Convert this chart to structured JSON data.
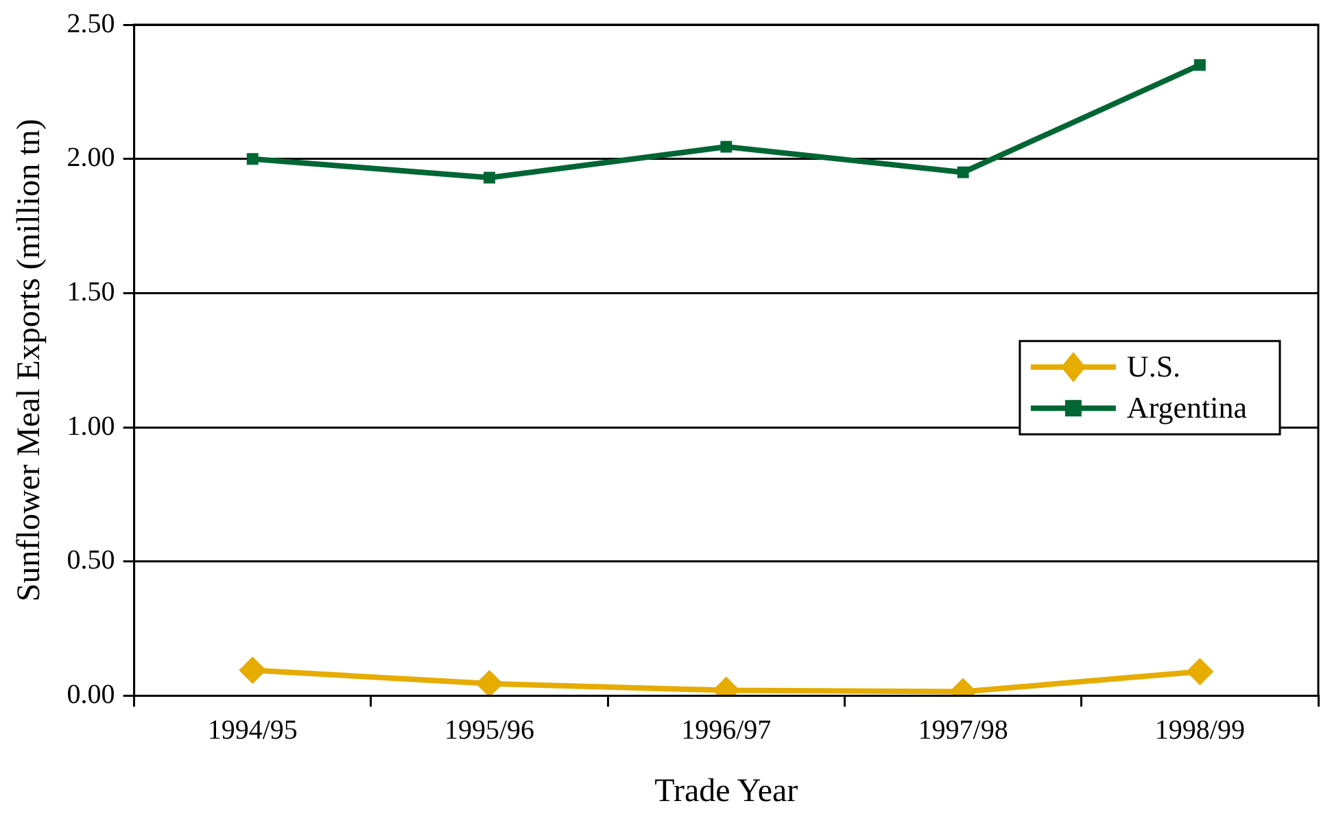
{
  "chart_data": {
    "type": "line",
    "xlabel": "Trade Year",
    "ylabel": "Sunflower Meal Exports (million tn)",
    "categories": [
      "1994/95",
      "1995/96",
      "1996/97",
      "1997/98",
      "1998/99"
    ],
    "series": [
      {
        "name": "U.S.",
        "color": "#e6ac00",
        "marker": "diamond",
        "values": [
          0.095,
          0.045,
          0.02,
          0.015,
          0.09
        ]
      },
      {
        "name": "Argentina",
        "color": "#006633",
        "marker": "square",
        "values": [
          2.0,
          1.93,
          2.045,
          1.95,
          2.35
        ]
      }
    ],
    "ylim": [
      0,
      2.5
    ],
    "yticks": [
      {
        "value": 0,
        "label": "0.00"
      },
      {
        "value": 0.5,
        "label": "0.50"
      },
      {
        "value": 1,
        "label": "1.00"
      },
      {
        "value": 1.5,
        "label": "1.50"
      },
      {
        "value": 2,
        "label": "2.00"
      },
      {
        "value": 2.5,
        "label": "2.50"
      }
    ],
    "grid": "y",
    "legend": "center right",
    "line_style": "solid"
  }
}
